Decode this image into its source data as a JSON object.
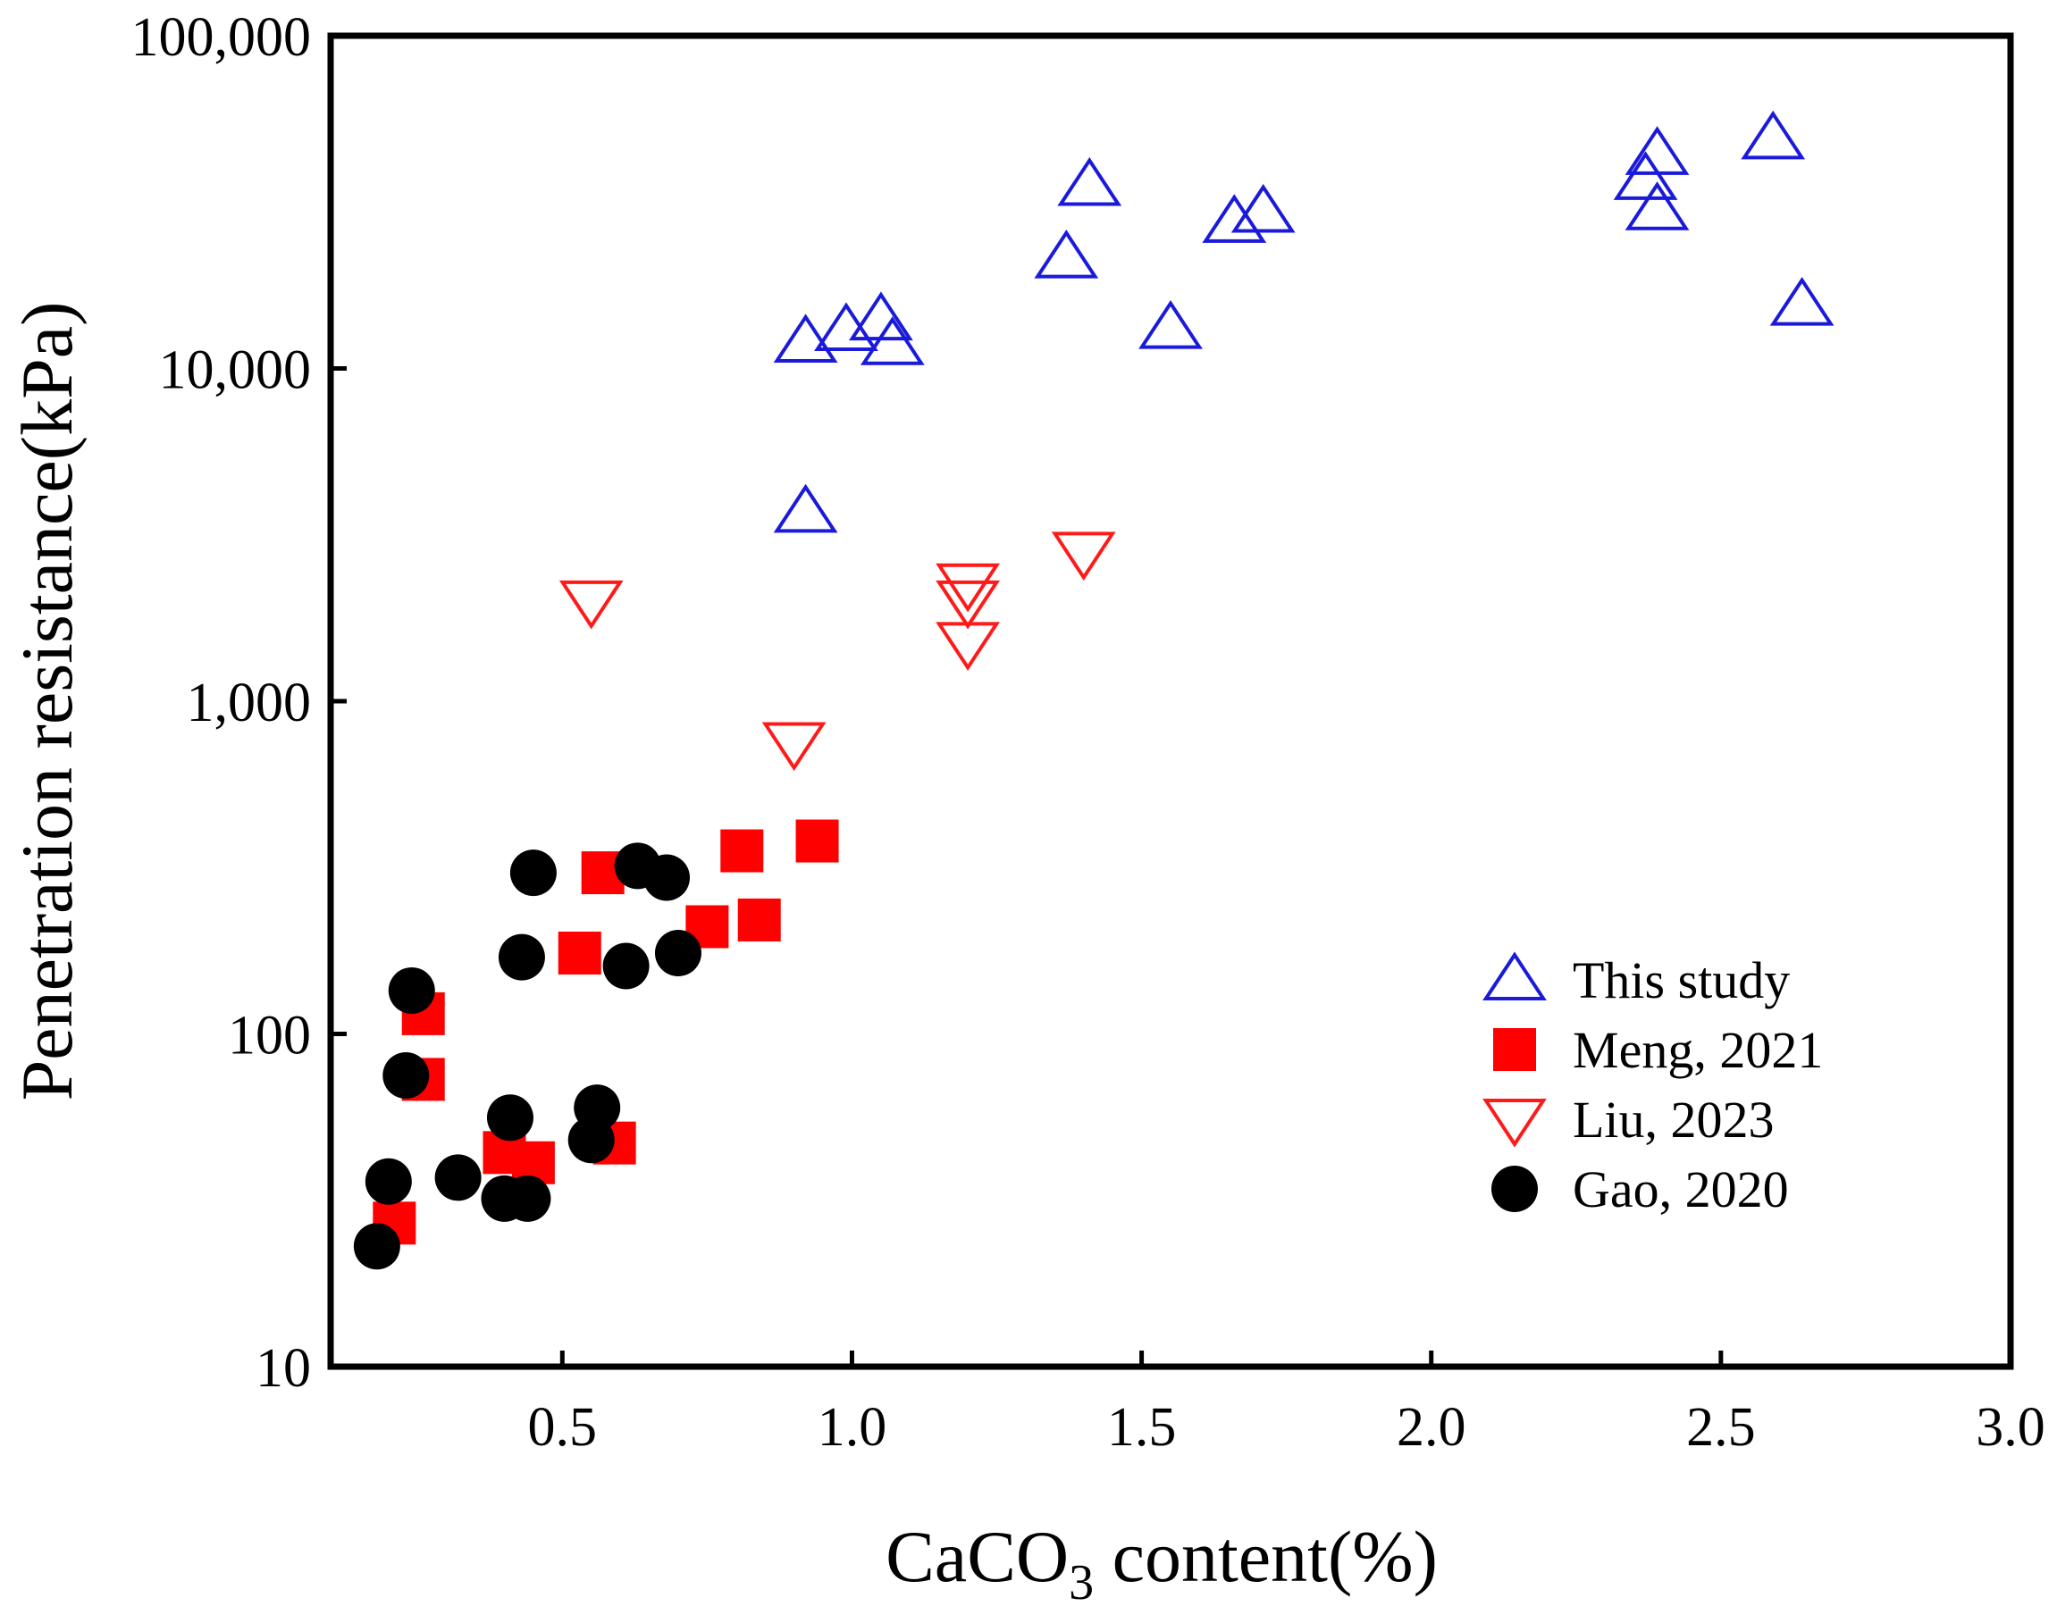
{
  "chart_data": {
    "type": "scatter",
    "title": "",
    "xlabel": {
      "prefix": "CaCO",
      "subscript": "3",
      "suffix": " content(%)"
    },
    "ylabel": "Penetration resistance(kPa)",
    "xlim": [
      0.1,
      3.0
    ],
    "ylim": [
      10,
      100000
    ],
    "yscale": "log",
    "x_ticks": [
      {
        "value": 0.5,
        "label": "0.5"
      },
      {
        "value": 1.0,
        "label": "1.0"
      },
      {
        "value": 1.5,
        "label": "1.5"
      },
      {
        "value": 2.0,
        "label": "2.0"
      },
      {
        "value": 2.5,
        "label": "2.5"
      },
      {
        "value": 3.0,
        "label": "3.0"
      }
    ],
    "y_ticks": [
      {
        "value": 10,
        "label": "10"
      },
      {
        "value": 100,
        "label": "100"
      },
      {
        "value": 1000,
        "label": "1,000"
      },
      {
        "value": 10000,
        "label": "10,000"
      },
      {
        "value": 100000,
        "label": "100,000"
      }
    ],
    "grid": false,
    "legend_position": "bottom-right",
    "series": [
      {
        "name": "This study",
        "marker": "triangle-up-open",
        "color": "#1a1adb",
        "points": [
          [
            0.92,
            12000
          ],
          [
            0.99,
            13000
          ],
          [
            1.05,
            14000
          ],
          [
            1.07,
            11800
          ],
          [
            0.92,
            3700
          ],
          [
            1.37,
            21500
          ],
          [
            1.41,
            35500
          ],
          [
            1.55,
            13200
          ],
          [
            1.66,
            27500
          ],
          [
            1.71,
            29500
          ],
          [
            2.37,
            37000
          ],
          [
            2.39,
            44000
          ],
          [
            2.39,
            30000
          ],
          [
            2.59,
            49000
          ],
          [
            2.64,
            15500
          ]
        ]
      },
      {
        "name": "Meng, 2021",
        "marker": "square-filled",
        "color": "#ff0000",
        "points": [
          [
            0.21,
            27
          ],
          [
            0.26,
            73
          ],
          [
            0.26,
            115
          ],
          [
            0.4,
            44
          ],
          [
            0.45,
            41
          ],
          [
            0.53,
            175
          ],
          [
            0.57,
            305
          ],
          [
            0.59,
            47
          ],
          [
            0.75,
            210
          ],
          [
            0.81,
            355
          ],
          [
            0.84,
            220
          ],
          [
            0.94,
            380
          ]
        ]
      },
      {
        "name": "Liu, 2023",
        "marker": "triangle-down-open",
        "color": "#ff1a1a",
        "points": [
          [
            0.55,
            2000
          ],
          [
            0.9,
            750
          ],
          [
            1.2,
            2250
          ],
          [
            1.2,
            2000
          ],
          [
            1.2,
            1500
          ],
          [
            1.4,
            2800
          ]
        ]
      },
      {
        "name": "Gao, 2020",
        "marker": "circle-filled",
        "color": "#000000",
        "points": [
          [
            0.18,
            23
          ],
          [
            0.2,
            36
          ],
          [
            0.23,
            75
          ],
          [
            0.24,
            135
          ],
          [
            0.32,
            37
          ],
          [
            0.41,
            56
          ],
          [
            0.4,
            32
          ],
          [
            0.44,
            32
          ],
          [
            0.43,
            170
          ],
          [
            0.45,
            305
          ],
          [
            0.56,
            60
          ],
          [
            0.55,
            48
          ],
          [
            0.61,
            160
          ],
          [
            0.63,
            320
          ],
          [
            0.68,
            295
          ],
          [
            0.7,
            175
          ]
        ]
      }
    ]
  }
}
